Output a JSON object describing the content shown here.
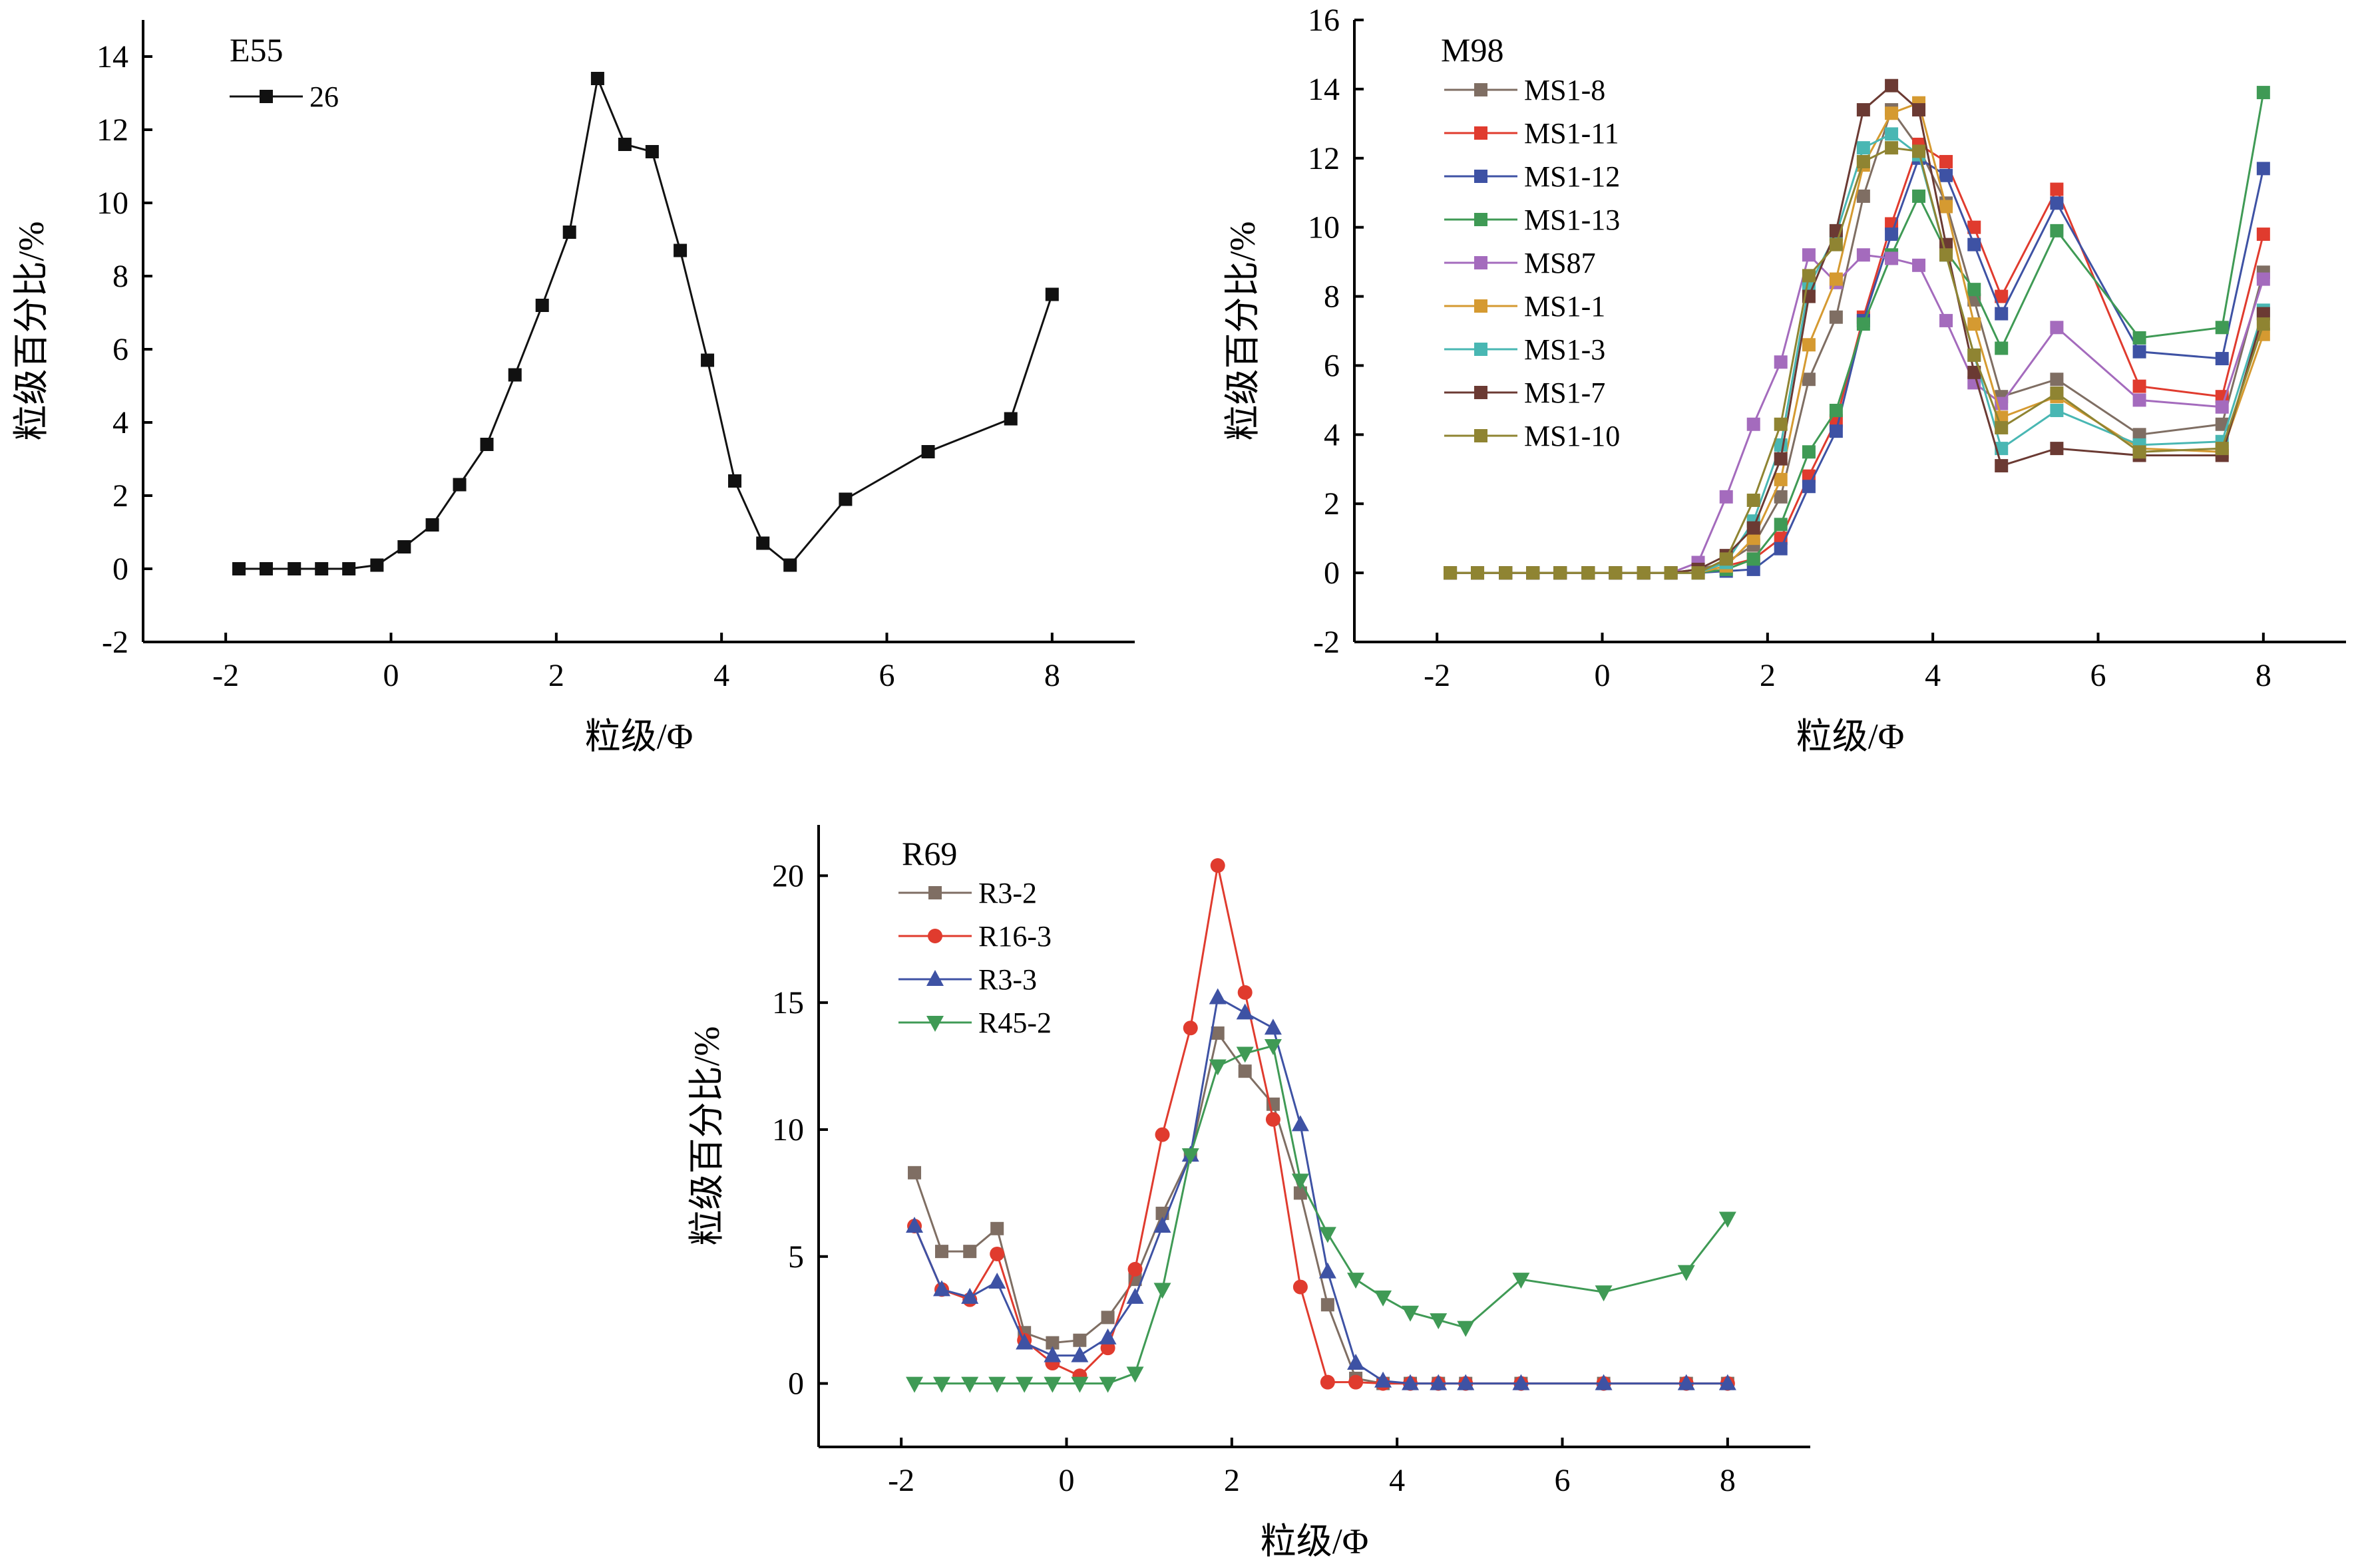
{
  "chart_data": [
    {
      "type": "line",
      "title": "E55",
      "xlabel": "粒级/Φ",
      "ylabel": "粒级百分比/%",
      "xlim": [
        -3,
        9
      ],
      "ylim": [
        -2,
        15
      ],
      "xticks": [
        -2,
        0,
        2,
        4,
        6,
        8
      ],
      "xtick_labels": [
        "-2",
        "0",
        "2",
        "4",
        "6",
        "8"
      ],
      "yticks": [
        -2,
        0,
        2,
        4,
        6,
        8,
        10,
        12,
        14
      ],
      "ytick_labels": [
        "-2",
        "0",
        "2",
        "4",
        "6",
        "8",
        "10",
        "12",
        "14"
      ],
      "grid": false,
      "legend": "top-left",
      "series": [
        {
          "name": "26",
          "color": "#111111",
          "marker": "square",
          "x": [
            -1.84,
            -1.51,
            -1.17,
            -0.84,
            -0.51,
            -0.17,
            0.16,
            0.5,
            0.83,
            1.16,
            1.5,
            1.83,
            2.16,
            2.5,
            2.83,
            3.16,
            3.5,
            3.83,
            4.16,
            4.5,
            4.83,
            5.5,
            6.5,
            7.5,
            8.0
          ],
          "values": [
            0,
            0,
            0,
            0,
            0,
            0.1,
            0.6,
            1.2,
            2.3,
            3.4,
            5.3,
            7.2,
            9.2,
            13.4,
            11.6,
            11.4,
            8.7,
            5.7,
            2.4,
            0.7,
            0.1,
            1.9,
            3.2,
            4.1,
            7.5
          ]
        }
      ]
    },
    {
      "type": "line",
      "title": "M98",
      "xlabel": "粒级/Φ",
      "ylabel": "粒级百分比/%",
      "xlim": [
        -3,
        9
      ],
      "ylim": [
        -2,
        16
      ],
      "xticks": [
        -2,
        0,
        2,
        4,
        6,
        8
      ],
      "xtick_labels": [
        "-2",
        "0",
        "2",
        "4",
        "6",
        "8"
      ],
      "yticks": [
        -2,
        0,
        2,
        4,
        6,
        8,
        10,
        12,
        14,
        16
      ],
      "ytick_labels": [
        "-2",
        "0",
        "2",
        "4",
        "6",
        "8",
        "10",
        "12",
        "14",
        "16"
      ],
      "grid": false,
      "legend": "top-left",
      "x": [
        -1.84,
        -1.51,
        -1.17,
        -0.84,
        -0.51,
        -0.17,
        0.16,
        0.5,
        0.83,
        1.16,
        1.5,
        1.83,
        2.16,
        2.5,
        2.83,
        3.16,
        3.5,
        3.83,
        4.16,
        4.5,
        4.83,
        5.5,
        6.5,
        7.5,
        8.0
      ],
      "series": [
        {
          "name": "MS1-8",
          "color": "#7f6e63",
          "marker": "square",
          "values": [
            0,
            0,
            0,
            0,
            0,
            0,
            0,
            0,
            0,
            0.1,
            0.3,
            0.8,
            2.2,
            5.6,
            7.4,
            10.9,
            13.4,
            12.3,
            10.7,
            7.9,
            5.1,
            5.6,
            4.0,
            4.3,
            8.7
          ]
        },
        {
          "name": "MS1-11",
          "color": "#e03b2e",
          "marker": "square",
          "values": [
            0,
            0,
            0,
            0,
            0,
            0,
            0,
            0,
            0,
            0,
            0.2,
            0.4,
            1.0,
            2.8,
            4.4,
            7.4,
            10.1,
            12.4,
            11.9,
            10.0,
            8.0,
            11.1,
            5.4,
            5.1,
            9.8
          ]
        },
        {
          "name": "MS1-12",
          "color": "#3e52a4",
          "marker": "square",
          "values": [
            0,
            0,
            0,
            0,
            0,
            0,
            0,
            0,
            0,
            0,
            0.05,
            0.1,
            0.7,
            2.5,
            4.1,
            7.3,
            9.8,
            12.0,
            11.5,
            9.5,
            7.5,
            10.7,
            6.4,
            6.2,
            11.7
          ]
        },
        {
          "name": "MS1-13",
          "color": "#3f9a55",
          "marker": "square",
          "values": [
            0,
            0,
            0,
            0,
            0,
            0,
            0,
            0,
            0,
            0,
            0.1,
            0.4,
            1.4,
            3.5,
            4.7,
            7.2,
            9.2,
            10.9,
            9.3,
            8.2,
            6.5,
            9.9,
            6.8,
            7.1,
            13.9
          ]
        },
        {
          "name": "MS87",
          "color": "#a46bbd",
          "marker": "square",
          "values": [
            0,
            0,
            0,
            0,
            0,
            0,
            0,
            0,
            0,
            0.3,
            2.2,
            4.3,
            6.1,
            9.2,
            8.4,
            9.2,
            9.1,
            8.9,
            7.3,
            5.5,
            4.9,
            7.1,
            5.0,
            4.8,
            8.5
          ]
        },
        {
          "name": "MS1-1",
          "color": "#d59a31",
          "marker": "square",
          "values": [
            0,
            0,
            0,
            0,
            0,
            0,
            0,
            0,
            0,
            0,
            0.2,
            1.0,
            2.7,
            6.6,
            8.5,
            11.8,
            13.3,
            13.6,
            10.6,
            7.2,
            4.5,
            5.1,
            3.6,
            3.5,
            6.9
          ]
        },
        {
          "name": "MS1-3",
          "color": "#49b7b3",
          "marker": "square",
          "values": [
            0,
            0,
            0,
            0,
            0,
            0,
            0,
            0,
            0,
            0,
            0.3,
            1.5,
            3.7,
            8.3,
            9.8,
            12.3,
            12.7,
            12.1,
            9.2,
            6.3,
            3.6,
            4.7,
            3.7,
            3.8,
            7.6
          ]
        },
        {
          "name": "MS1-7",
          "color": "#6b3a33",
          "marker": "square",
          "values": [
            0,
            0,
            0,
            0,
            0,
            0,
            0,
            0,
            0,
            0.1,
            0.5,
            1.3,
            3.3,
            8.0,
            9.9,
            13.4,
            14.1,
            13.4,
            9.5,
            5.8,
            3.1,
            3.6,
            3.4,
            3.4,
            7.5
          ]
        },
        {
          "name": "MS1-10",
          "color": "#8f8432",
          "marker": "square",
          "values": [
            0,
            0,
            0,
            0,
            0,
            0,
            0,
            0,
            0,
            0,
            0.4,
            2.1,
            4.3,
            8.6,
            9.5,
            11.9,
            12.3,
            12.2,
            9.2,
            6.3,
            4.2,
            5.2,
            3.5,
            3.6,
            7.2
          ]
        }
      ]
    },
    {
      "type": "line",
      "title": "R69",
      "xlabel": "粒级/Φ",
      "ylabel": "粒级百分比/%",
      "xlim": [
        -3,
        9
      ],
      "ylim": [
        -2.5,
        22
      ],
      "xticks": [
        -2,
        0,
        2,
        4,
        6,
        8
      ],
      "xtick_labels": [
        "-2",
        "0",
        "2",
        "4",
        "6",
        "8"
      ],
      "yticks": [
        0,
        5,
        10,
        15,
        20
      ],
      "ytick_labels": [
        "0",
        "5",
        "10",
        "15",
        "20"
      ],
      "grid": false,
      "legend": "top-left",
      "x": [
        -1.84,
        -1.51,
        -1.17,
        -0.84,
        -0.51,
        -0.17,
        0.16,
        0.5,
        0.83,
        1.16,
        1.5,
        1.83,
        2.16,
        2.5,
        2.83,
        3.16,
        3.5,
        3.83,
        4.16,
        4.5,
        4.83,
        5.5,
        6.5,
        7.5,
        8.0
      ],
      "series": [
        {
          "name": "R3-2",
          "color": "#7f6e63",
          "marker": "square",
          "values": [
            8.3,
            5.2,
            5.2,
            6.1,
            2.0,
            1.6,
            1.7,
            2.6,
            4.1,
            6.7,
            9.0,
            13.8,
            12.3,
            11.0,
            7.5,
            3.1,
            0.2,
            0,
            0,
            0,
            0,
            0,
            0,
            0,
            0
          ]
        },
        {
          "name": "R16-3",
          "color": "#e03b2e",
          "marker": "circle",
          "values": [
            6.2,
            3.7,
            3.3,
            5.1,
            1.7,
            0.8,
            0.3,
            1.4,
            4.5,
            9.8,
            14.0,
            20.4,
            15.4,
            10.4,
            3.8,
            0.05,
            0.05,
            0,
            0,
            0,
            0,
            0,
            0,
            0,
            0
          ]
        },
        {
          "name": "R3-3",
          "color": "#3e52a4",
          "marker": "triangle-up",
          "values": [
            6.2,
            3.7,
            3.4,
            4.0,
            1.6,
            1.1,
            1.1,
            1.8,
            3.4,
            6.2,
            9.0,
            15.2,
            14.6,
            14.0,
            10.2,
            4.4,
            0.8,
            0.1,
            0,
            0,
            0,
            0,
            0,
            0,
            0
          ]
        },
        {
          "name": "R45-2",
          "color": "#3f9a55",
          "marker": "triangle-down",
          "values": [
            0,
            0,
            0,
            0,
            0,
            0,
            0,
            0,
            0.4,
            3.7,
            9.0,
            12.5,
            13.0,
            13.3,
            8.0,
            5.9,
            4.1,
            3.4,
            2.8,
            2.5,
            2.2,
            4.1,
            3.6,
            4.4,
            6.5
          ]
        }
      ]
    }
  ]
}
